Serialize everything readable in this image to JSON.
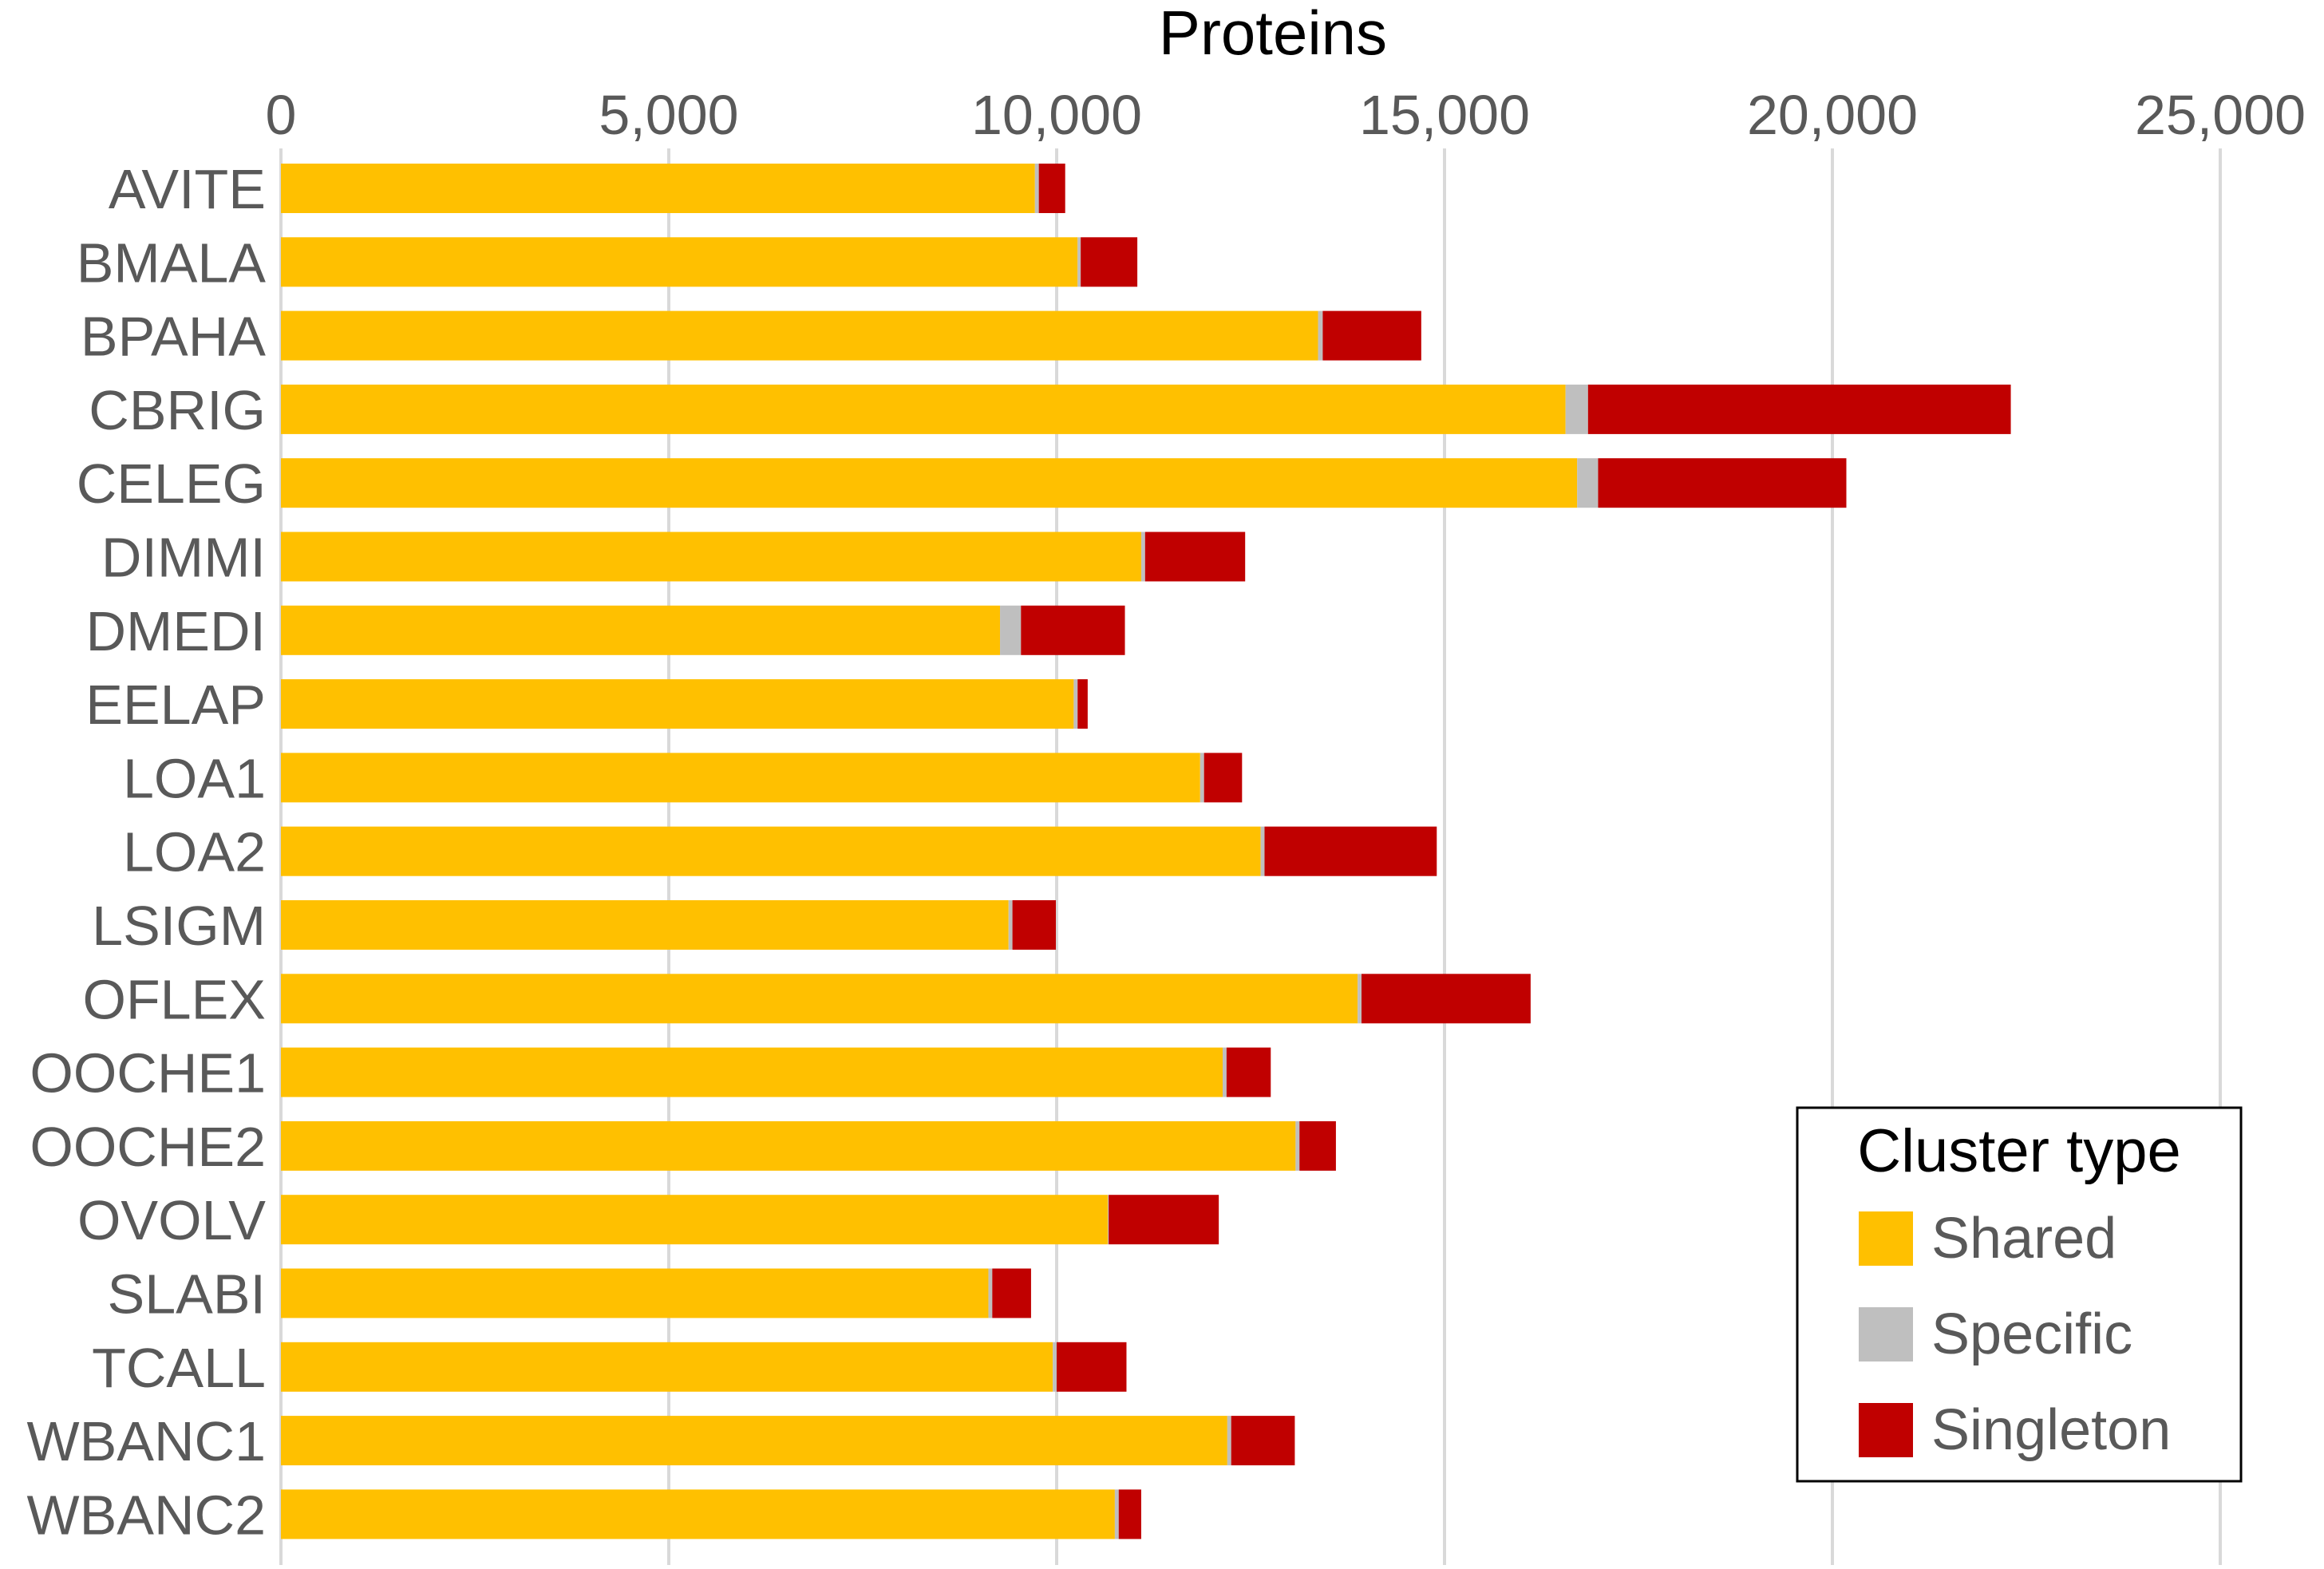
{
  "chart_data": {
    "type": "bar",
    "orientation": "horizontal",
    "stacked": true,
    "title": "",
    "xlabel": "Proteins",
    "ylabel": "",
    "xaxis_position": "top",
    "xlim": [
      0,
      25000
    ],
    "xticks": [
      0,
      5000,
      10000,
      15000,
      20000,
      25000
    ],
    "xtick_labels": [
      "0",
      "5,000",
      "10,000",
      "15,000",
      "20,000",
      "25,000"
    ],
    "grid": true,
    "legend": {
      "title": "Cluster type",
      "placement": "bottom-right"
    },
    "categories": [
      "AVITE",
      "BMALA",
      "BPAHA",
      "CBRIG",
      "CELEG",
      "DIMMI",
      "DMEDI",
      "EELAP",
      "LOA1",
      "LOA2",
      "LSIGM",
      "OFLEX",
      "OOCHE1",
      "OOCHE2",
      "OVOLV",
      "SLABI",
      "TCALL",
      "WBANC1",
      "WBANC2"
    ],
    "series": [
      {
        "name": "Shared",
        "color": "#FFC000",
        "values": [
          9720,
          10270,
          13370,
          16560,
          16710,
          11090,
          9270,
          10220,
          11850,
          12630,
          9380,
          13880,
          12140,
          13080,
          10660,
          9120,
          9950,
          12200,
          10750
        ]
      },
      {
        "name": "Specific",
        "color": "#BFBFBF",
        "values": [
          50,
          40,
          60,
          290,
          270,
          50,
          270,
          50,
          50,
          50,
          50,
          50,
          50,
          50,
          10,
          50,
          50,
          50,
          50
        ]
      },
      {
        "name": "Singleton",
        "color": "#C00000",
        "values": [
          340,
          730,
          1270,
          5450,
          3200,
          1290,
          1340,
          130,
          490,
          2220,
          560,
          2180,
          570,
          470,
          1420,
          500,
          900,
          820,
          290
        ]
      }
    ]
  }
}
